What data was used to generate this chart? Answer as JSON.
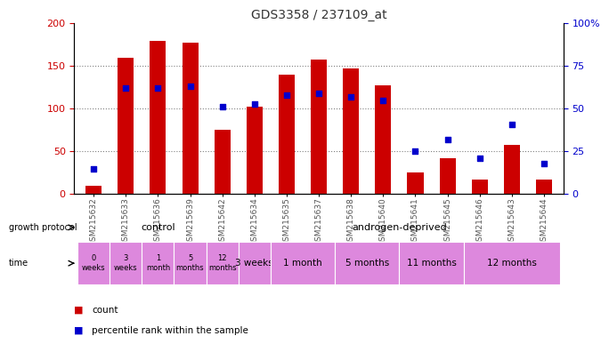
{
  "title": "GDS3358 / 237109_at",
  "samples": [
    "GSM215632",
    "GSM215633",
    "GSM215636",
    "GSM215639",
    "GSM215642",
    "GSM215634",
    "GSM215635",
    "GSM215637",
    "GSM215638",
    "GSM215640",
    "GSM215641",
    "GSM215645",
    "GSM215646",
    "GSM215643",
    "GSM215644"
  ],
  "counts": [
    10,
    160,
    180,
    178,
    75,
    103,
    140,
    158,
    147,
    128,
    25,
    42,
    17,
    58,
    17
  ],
  "percentile_ranks": [
    15,
    62,
    62,
    63,
    51,
    53,
    58,
    59,
    57,
    55,
    25,
    32,
    21,
    41,
    18
  ],
  "count_color": "#cc0000",
  "percentile_color": "#0000cc",
  "bar_width": 0.5,
  "ylim_left": [
    0,
    200
  ],
  "ylim_right": [
    0,
    100
  ],
  "yticks_left": [
    0,
    50,
    100,
    150,
    200
  ],
  "yticks_right": [
    0,
    25,
    50,
    75,
    100
  ],
  "ytick_labels_right": [
    "0",
    "25",
    "50",
    "75",
    "100%"
  ],
  "grid_color": "#000000",
  "grid_alpha": 0.5,
  "grid_style": "dotted",
  "control_label": "control",
  "androgen_label": "androgen-deprived",
  "control_color": "#aaf0aa",
  "androgen_color": "#44dd44",
  "time_color": "#dd88dd",
  "time_labels_control": [
    "0\nweeks",
    "3\nweeks",
    "1\nmonth",
    "5\nmonths",
    "12\nmonths"
  ],
  "time_labels_androgen": [
    "3 weeks",
    "1 month",
    "5 months",
    "11 months",
    "12 months"
  ],
  "androgen_group_sizes": [
    1,
    2,
    2,
    2,
    3
  ],
  "legend_count": "count",
  "legend_percentile": "percentile rank within the sample",
  "growth_protocol_label": "growth protocol",
  "time_row_label": "time",
  "bg_color": "#ffffff",
  "xticklabel_color": "#555555",
  "title_color": "#333333"
}
